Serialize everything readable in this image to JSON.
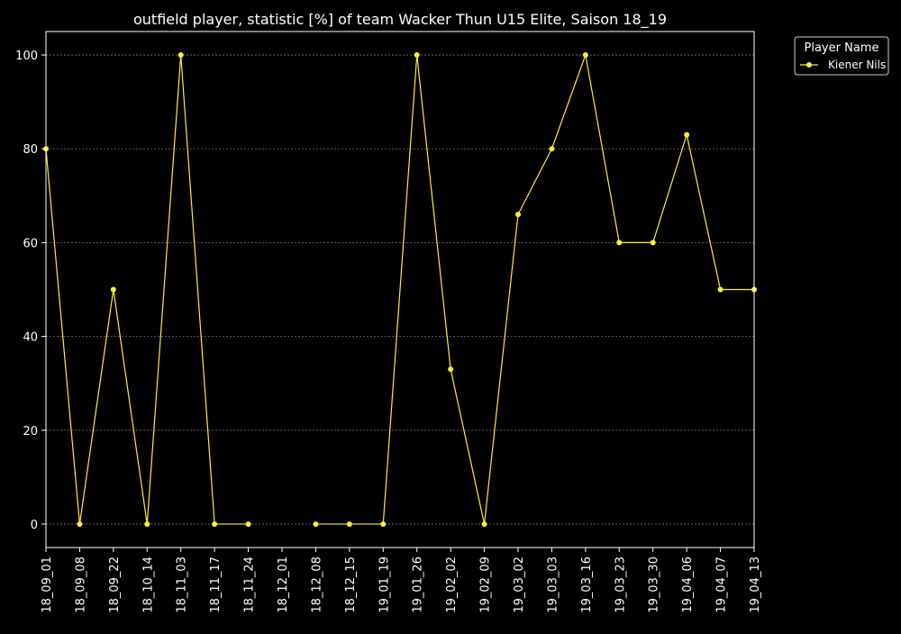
{
  "chart_data": {
    "type": "line",
    "title": "outfield player, statistic [%] of team Wacker Thun U15 Elite, Saison 18_19",
    "xlabel": "",
    "ylabel": "",
    "categories": [
      "18_09_01",
      "18_09_08",
      "18_09_22",
      "18_10_14",
      "18_11_03",
      "18_11_17",
      "18_11_24",
      "18_12_01",
      "18_12_08",
      "18_12_15",
      "19_01_19",
      "19_01_26",
      "19_02_02",
      "19_02_09",
      "19_03_02",
      "19_03_03",
      "19_03_16",
      "19_03_23",
      "19_03_30",
      "19_04_06",
      "19_04_07",
      "19_04_13"
    ],
    "series": [
      {
        "name": "Kiener Nils",
        "values": [
          80,
          0,
          50,
          0,
          100,
          0,
          0,
          null,
          0,
          0,
          0,
          100,
          33,
          0,
          66,
          80,
          100,
          60,
          60,
          83,
          50,
          50
        ]
      }
    ],
    "ylim": [
      -5,
      105
    ],
    "yticks": [
      0,
      20,
      40,
      60,
      80,
      100
    ],
    "grid": true,
    "legend": {
      "title": "Player Name",
      "placement": "top-right outside"
    },
    "colors": {
      "background": "#000000",
      "line": "#ffee33",
      "axes": "#ffffff",
      "grid": "#777777"
    }
  }
}
